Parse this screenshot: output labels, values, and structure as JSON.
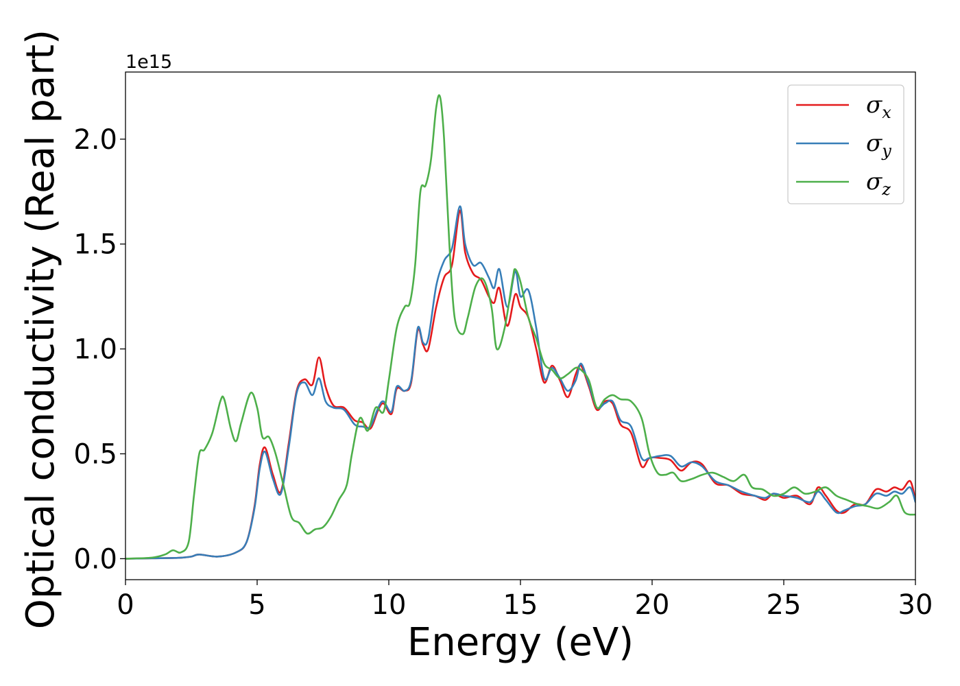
{
  "chart_data": {
    "type": "line",
    "xlabel": "Energy (eV)",
    "ylabel": "Optical conductivity (Real part)",
    "y_offset_text": "1e15",
    "xlim": [
      0,
      30
    ],
    "ylim": [
      -0.1,
      2.32
    ],
    "y_scale_factor": 1000000000000000.0,
    "grid": false,
    "legend_position": "top-right",
    "x_ticks": [
      0,
      5,
      10,
      15,
      20,
      25,
      30
    ],
    "x_tick_labels": [
      "0",
      "5",
      "10",
      "15",
      "20",
      "25",
      "30"
    ],
    "y_ticks": [
      0.0,
      0.5,
      1.0,
      1.5,
      2.0
    ],
    "y_tick_labels": [
      "0.0",
      "0.5",
      "1.0",
      "1.5",
      "2.0"
    ],
    "series": [
      {
        "name": "σx",
        "symbol": "σ",
        "subscript": "x",
        "color": "#e41a1c",
        "x": [
          0,
          1,
          2,
          2.5,
          2.8,
          3.5,
          4.2,
          4.6,
          4.9,
          5.1,
          5.3,
          5.6,
          5.9,
          6.2,
          6.5,
          6.8,
          7.1,
          7.35,
          7.6,
          7.9,
          8.3,
          8.7,
          9.0,
          9.3,
          9.6,
          9.8,
          10.1,
          10.3,
          10.6,
          10.85,
          11.1,
          11.3,
          11.5,
          11.8,
          12.1,
          12.4,
          12.7,
          12.9,
          13.2,
          13.5,
          13.8,
          14.0,
          14.2,
          14.5,
          14.8,
          15.0,
          15.3,
          15.6,
          15.9,
          16.2,
          16.5,
          16.8,
          17.1,
          17.3,
          17.6,
          17.9,
          18.2,
          18.5,
          18.8,
          19.2,
          19.6,
          19.9,
          20.3,
          20.7,
          21.1,
          21.5,
          21.9,
          22.4,
          22.9,
          23.4,
          23.9,
          24.3,
          24.6,
          25.0,
          25.5,
          26.0,
          26.3,
          26.6,
          27.0,
          27.3,
          27.7,
          28.1,
          28.5,
          28.9,
          29.2,
          29.5,
          29.8,
          30
        ],
        "y": [
          0.0,
          0.002,
          0.004,
          0.01,
          0.02,
          0.01,
          0.03,
          0.08,
          0.25,
          0.45,
          0.53,
          0.4,
          0.32,
          0.55,
          0.8,
          0.855,
          0.83,
          0.96,
          0.82,
          0.73,
          0.72,
          0.66,
          0.65,
          0.62,
          0.71,
          0.74,
          0.69,
          0.81,
          0.8,
          0.84,
          1.09,
          1.02,
          1.0,
          1.2,
          1.34,
          1.4,
          1.66,
          1.46,
          1.36,
          1.33,
          1.25,
          1.22,
          1.29,
          1.11,
          1.26,
          1.2,
          1.15,
          1.0,
          0.84,
          0.92,
          0.85,
          0.77,
          0.88,
          0.92,
          0.82,
          0.71,
          0.75,
          0.74,
          0.64,
          0.6,
          0.44,
          0.48,
          0.48,
          0.47,
          0.42,
          0.46,
          0.45,
          0.36,
          0.35,
          0.31,
          0.3,
          0.28,
          0.31,
          0.29,
          0.3,
          0.26,
          0.34,
          0.3,
          0.23,
          0.22,
          0.26,
          0.26,
          0.33,
          0.32,
          0.34,
          0.33,
          0.37,
          0.28
        ]
      },
      {
        "name": "σy",
        "symbol": "σ",
        "subscript": "y",
        "color": "#377eb8",
        "x": [
          0,
          1,
          2,
          2.5,
          2.8,
          3.5,
          4.2,
          4.6,
          4.9,
          5.1,
          5.3,
          5.6,
          5.9,
          6.2,
          6.5,
          6.8,
          7.1,
          7.35,
          7.6,
          7.9,
          8.3,
          8.7,
          9.0,
          9.3,
          9.6,
          9.8,
          10.1,
          10.3,
          10.6,
          10.85,
          11.1,
          11.3,
          11.5,
          11.8,
          12.1,
          12.4,
          12.7,
          12.9,
          13.2,
          13.5,
          13.8,
          14.0,
          14.2,
          14.5,
          14.8,
          15.0,
          15.3,
          15.6,
          15.9,
          16.2,
          16.5,
          16.8,
          17.1,
          17.3,
          17.6,
          17.9,
          18.2,
          18.5,
          18.8,
          19.2,
          19.6,
          19.9,
          20.3,
          20.7,
          21.1,
          21.5,
          21.9,
          22.4,
          22.9,
          23.4,
          23.9,
          24.3,
          24.6,
          25.0,
          25.5,
          26.0,
          26.3,
          26.6,
          27.0,
          27.3,
          27.7,
          28.1,
          28.5,
          28.9,
          29.2,
          29.5,
          29.8,
          30
        ],
        "y": [
          0.0,
          0.002,
          0.004,
          0.01,
          0.02,
          0.01,
          0.03,
          0.08,
          0.24,
          0.43,
          0.51,
          0.38,
          0.31,
          0.53,
          0.79,
          0.84,
          0.78,
          0.86,
          0.75,
          0.72,
          0.71,
          0.64,
          0.63,
          0.63,
          0.72,
          0.75,
          0.7,
          0.82,
          0.8,
          0.85,
          1.1,
          1.03,
          1.05,
          1.3,
          1.42,
          1.48,
          1.68,
          1.5,
          1.4,
          1.41,
          1.34,
          1.29,
          1.38,
          1.2,
          1.37,
          1.25,
          1.28,
          1.1,
          0.86,
          0.91,
          0.86,
          0.8,
          0.85,
          0.93,
          0.83,
          0.72,
          0.74,
          0.75,
          0.66,
          0.63,
          0.48,
          0.48,
          0.49,
          0.49,
          0.44,
          0.46,
          0.44,
          0.37,
          0.35,
          0.32,
          0.3,
          0.29,
          0.31,
          0.3,
          0.29,
          0.27,
          0.32,
          0.28,
          0.22,
          0.23,
          0.25,
          0.26,
          0.31,
          0.3,
          0.32,
          0.31,
          0.34,
          0.27
        ]
      },
      {
        "name": "σz",
        "symbol": "σ",
        "subscript": "z",
        "color": "#4daf4a",
        "x": [
          0,
          1,
          1.5,
          1.8,
          2.1,
          2.4,
          2.6,
          2.8,
          3.0,
          3.3,
          3.6,
          3.75,
          4.0,
          4.2,
          4.4,
          4.75,
          5.0,
          5.2,
          5.45,
          5.7,
          6.0,
          6.3,
          6.6,
          6.9,
          7.2,
          7.5,
          7.8,
          8.1,
          8.4,
          8.6,
          8.9,
          9.2,
          9.5,
          9.8,
          10.0,
          10.3,
          10.6,
          10.8,
          11.0,
          11.2,
          11.4,
          11.6,
          11.8,
          11.95,
          12.1,
          12.3,
          12.5,
          12.8,
          13.0,
          13.3,
          13.6,
          13.9,
          14.1,
          14.4,
          14.7,
          14.8,
          15.0,
          15.3,
          15.6,
          15.9,
          16.2,
          16.5,
          16.8,
          17.1,
          17.3,
          17.6,
          17.9,
          18.2,
          18.5,
          18.8,
          19.2,
          19.6,
          19.9,
          20.2,
          20.5,
          20.8,
          21.1,
          21.5,
          21.9,
          22.3,
          22.7,
          23.1,
          23.5,
          23.8,
          24.2,
          24.6,
          25.0,
          25.4,
          25.8,
          26.2,
          26.6,
          27.0,
          27.4,
          27.8,
          28.2,
          28.6,
          29.0,
          29.3,
          29.6,
          30
        ],
        "y": [
          0.0,
          0.005,
          0.02,
          0.04,
          0.03,
          0.08,
          0.3,
          0.5,
          0.52,
          0.6,
          0.75,
          0.76,
          0.62,
          0.56,
          0.65,
          0.79,
          0.72,
          0.58,
          0.58,
          0.5,
          0.35,
          0.2,
          0.17,
          0.12,
          0.14,
          0.15,
          0.2,
          0.28,
          0.35,
          0.5,
          0.67,
          0.61,
          0.72,
          0.7,
          0.85,
          1.1,
          1.2,
          1.22,
          1.4,
          1.75,
          1.78,
          1.9,
          2.15,
          2.2,
          2.0,
          1.5,
          1.15,
          1.07,
          1.15,
          1.3,
          1.33,
          1.2,
          1.0,
          1.1,
          1.33,
          1.38,
          1.32,
          1.15,
          1.05,
          0.93,
          0.9,
          0.86,
          0.88,
          0.91,
          0.9,
          0.85,
          0.72,
          0.76,
          0.78,
          0.76,
          0.75,
          0.67,
          0.5,
          0.41,
          0.4,
          0.41,
          0.37,
          0.38,
          0.4,
          0.41,
          0.39,
          0.37,
          0.4,
          0.34,
          0.33,
          0.3,
          0.31,
          0.34,
          0.31,
          0.32,
          0.34,
          0.3,
          0.28,
          0.26,
          0.25,
          0.24,
          0.27,
          0.3,
          0.22,
          0.21
        ]
      }
    ]
  }
}
